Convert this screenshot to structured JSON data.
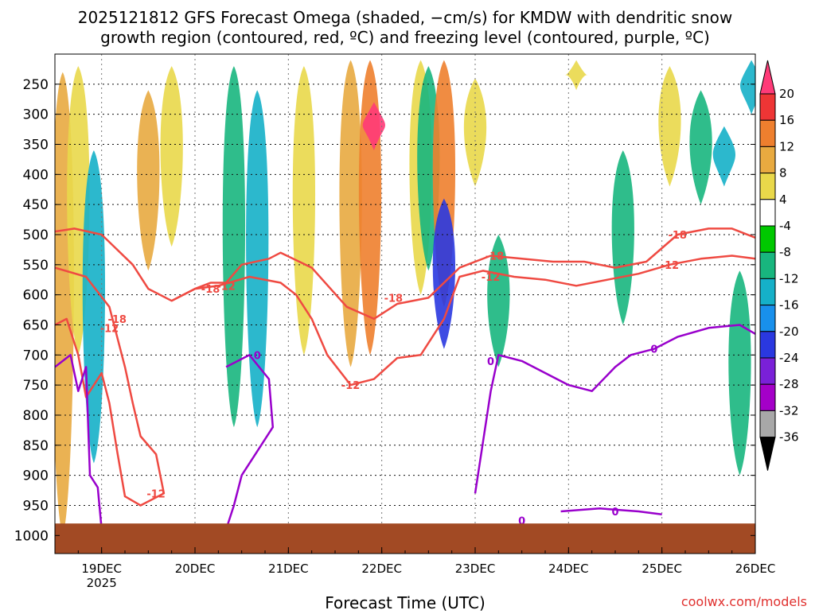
{
  "chart_data": {
    "type": "heatmap",
    "title_line1": "2025121812 GFS Forecast Omega (shaded, −cm/s) for KMDW with dendritic snow",
    "title_line2": "growth region (contoured, red, ºC) and freezing level (contoured, purple, ºC)",
    "xlabel": "Forecast Time (UTC)",
    "ylabel": "",
    "credit": "coolwx.com/models",
    "x_ticks": [
      {
        "label": "19DEC",
        "sub": "2025",
        "hour": 12
      },
      {
        "label": "20DEC",
        "sub": "",
        "hour": 36
      },
      {
        "label": "21DEC",
        "sub": "",
        "hour": 60
      },
      {
        "label": "22DEC",
        "sub": "",
        "hour": 84
      },
      {
        "label": "23DEC",
        "sub": "",
        "hour": 108
      },
      {
        "label": "24DEC",
        "sub": "",
        "hour": 132
      },
      {
        "label": "25DEC",
        "sub": "",
        "hour": 156
      },
      {
        "label": "26DEC",
        "sub": "",
        "hour": 180
      }
    ],
    "x_range_hours": [
      0,
      180
    ],
    "y_axis_units": "hPa",
    "y_range_hpa": [
      200,
      1030
    ],
    "y_ticks": [
      250,
      300,
      350,
      400,
      450,
      500,
      550,
      600,
      650,
      700,
      750,
      800,
      850,
      900,
      950,
      1000
    ],
    "surface_pressure_hpa": 980,
    "colorbar_labels": [
      20,
      16,
      12,
      8,
      4,
      -4,
      -8,
      -12,
      -16,
      -20,
      -24,
      -28,
      -32,
      -36
    ],
    "colorbar_colors": [
      "#ff3a78",
      "#ee3535",
      "#ee7f2e",
      "#e8aa40",
      "#e9d84a",
      "#ffffff",
      "#00c800",
      "#18b67e",
      "#15b0c8",
      "#1890ec",
      "#2a38e0",
      "#7a20d8",
      "#a400c8",
      "#a8a8a8",
      "#000000"
    ],
    "colors": {
      "dgz_contour": "#ef4a42",
      "freezing_contour": "#9900cc",
      "ground": "#a24a24",
      "grid": "#111111"
    },
    "dgz_contour_label_upper": "-18",
    "dgz_contour_label_lower": "-12",
    "freezing_contour_label": "0",
    "contour_minus18": [
      [
        0,
        495
      ],
      [
        5,
        490
      ],
      [
        12,
        500
      ],
      [
        20,
        550
      ],
      [
        24,
        590
      ],
      [
        30,
        610
      ],
      [
        36,
        590
      ],
      [
        40,
        580
      ],
      [
        44,
        580
      ],
      [
        48,
        550
      ],
      [
        55,
        540
      ],
      [
        58,
        530
      ],
      [
        66,
        555
      ],
      [
        75,
        620
      ],
      [
        82,
        640
      ],
      [
        88,
        615
      ],
      [
        96,
        605
      ],
      [
        104,
        555
      ],
      [
        112,
        535
      ],
      [
        120,
        540
      ],
      [
        128,
        545
      ],
      [
        136,
        545
      ],
      [
        144,
        555
      ],
      [
        152,
        545
      ],
      [
        160,
        500
      ],
      [
        168,
        490
      ],
      [
        174,
        490
      ],
      [
        180,
        505
      ]
    ],
    "contour_minus12": [
      [
        0,
        555
      ],
      [
        8,
        570
      ],
      [
        14,
        620
      ],
      [
        18,
        720
      ],
      [
        20,
        780
      ],
      [
        22,
        835
      ],
      [
        26,
        865
      ],
      [
        28,
        930
      ],
      [
        22,
        950
      ],
      [
        18,
        935
      ],
      [
        16,
        860
      ],
      [
        14,
        780
      ],
      [
        12,
        730
      ],
      [
        8,
        770
      ],
      [
        6,
        700
      ],
      [
        3,
        640
      ],
      [
        0,
        650
      ]
    ],
    "contour_minus12_b": [
      [
        30,
        610
      ],
      [
        36,
        590
      ],
      [
        42,
        585
      ],
      [
        50,
        570
      ],
      [
        58,
        580
      ],
      [
        62,
        600
      ],
      [
        66,
        640
      ],
      [
        70,
        700
      ],
      [
        76,
        750
      ],
      [
        82,
        740
      ],
      [
        88,
        705
      ],
      [
        94,
        700
      ],
      [
        100,
        640
      ],
      [
        104,
        570
      ],
      [
        110,
        560
      ],
      [
        118,
        570
      ],
      [
        126,
        575
      ],
      [
        134,
        585
      ],
      [
        142,
        575
      ],
      [
        150,
        565
      ],
      [
        158,
        550
      ],
      [
        166,
        540
      ],
      [
        174,
        535
      ],
      [
        180,
        540
      ]
    ],
    "freezing_level_0": [
      [
        0,
        720
      ],
      [
        4,
        700
      ],
      [
        6,
        760
      ],
      [
        8,
        720
      ],
      [
        9,
        900
      ],
      [
        11,
        920
      ],
      [
        12,
        990
      ]
    ],
    "freezing_level_0_b": [
      [
        44,
        720
      ],
      [
        50,
        700
      ],
      [
        55,
        740
      ],
      [
        56,
        820
      ],
      [
        52,
        860
      ],
      [
        48,
        900
      ],
      [
        46,
        950
      ],
      [
        44,
        990
      ]
    ],
    "freezing_level_0_c": [
      [
        108,
        930
      ],
      [
        112,
        760
      ],
      [
        114,
        700
      ],
      [
        120,
        710
      ],
      [
        126,
        730
      ],
      [
        132,
        750
      ],
      [
        138,
        760
      ],
      [
        144,
        720
      ],
      [
        148,
        700
      ],
      [
        154,
        690
      ],
      [
        160,
        670
      ],
      [
        168,
        655
      ],
      [
        176,
        650
      ],
      [
        180,
        665
      ]
    ],
    "freezing_level_0_d": [
      [
        130,
        960
      ],
      [
        140,
        955
      ],
      [
        150,
        960
      ],
      [
        156,
        965
      ]
    ],
    "omega_bands": [
      {
        "hour": 2,
        "top": 230,
        "bottom": 1000,
        "value": 8
      },
      {
        "hour": 6,
        "top": 220,
        "bottom": 700,
        "value": 4
      },
      {
        "hour": 10,
        "top": 360,
        "bottom": 880,
        "value": -12
      },
      {
        "hour": 24,
        "top": 260,
        "bottom": 560,
        "value": 8
      },
      {
        "hour": 30,
        "top": 220,
        "bottom": 520,
        "value": 4
      },
      {
        "hour": 46,
        "top": 220,
        "bottom": 820,
        "value": -8
      },
      {
        "hour": 52,
        "top": 260,
        "bottom": 820,
        "value": -12
      },
      {
        "hour": 64,
        "top": 220,
        "bottom": 700,
        "value": 4
      },
      {
        "hour": 76,
        "top": 210,
        "bottom": 720,
        "value": 8
      },
      {
        "hour": 81,
        "top": 210,
        "bottom": 700,
        "value": 12
      },
      {
        "hour": 82,
        "top": 280,
        "bottom": 360,
        "value": 20
      },
      {
        "hour": 94,
        "top": 210,
        "bottom": 600,
        "value": 4
      },
      {
        "hour": 96,
        "top": 220,
        "bottom": 560,
        "value": -8
      },
      {
        "hour": 100,
        "top": 210,
        "bottom": 620,
        "value": 12
      },
      {
        "hour": 100,
        "top": 440,
        "bottom": 690,
        "value": -20
      },
      {
        "hour": 108,
        "top": 240,
        "bottom": 420,
        "value": 4
      },
      {
        "hour": 114,
        "top": 500,
        "bottom": 720,
        "value": -8
      },
      {
        "hour": 134,
        "top": 210,
        "bottom": 260,
        "value": 4
      },
      {
        "hour": 146,
        "top": 360,
        "bottom": 650,
        "value": -8
      },
      {
        "hour": 158,
        "top": 220,
        "bottom": 420,
        "value": 4
      },
      {
        "hour": 166,
        "top": 260,
        "bottom": 450,
        "value": -8
      },
      {
        "hour": 172,
        "top": 320,
        "bottom": 420,
        "value": -12
      },
      {
        "hour": 176,
        "top": 560,
        "bottom": 900,
        "value": -8
      },
      {
        "hour": 179,
        "top": 210,
        "bottom": 300,
        "value": -12
      }
    ]
  }
}
